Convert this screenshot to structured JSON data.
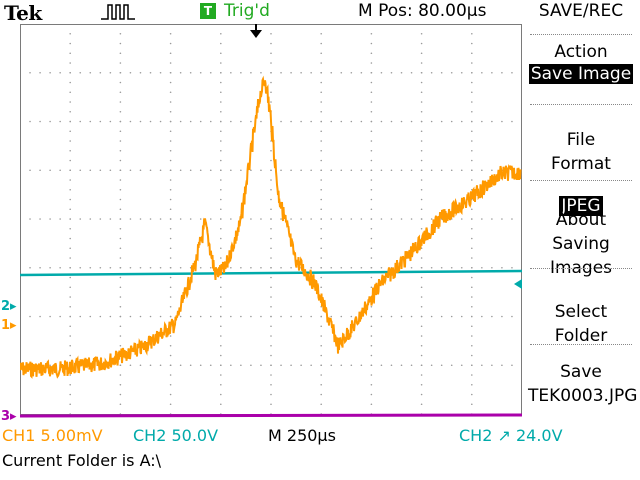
{
  "header": {
    "brand": "Tek",
    "acquire_icon": "pulse-icon",
    "trigger_badge": "T",
    "trigger_status": "Trig'd",
    "horizontal_position": "M Pos: 80.00µs"
  },
  "channel_markers": {
    "ch1": "1",
    "ch2": "2",
    "ch3": "3"
  },
  "menu": {
    "title": "SAVE/REC",
    "items": [
      {
        "label": "Action",
        "value": "Save Image"
      },
      {
        "label": "File\nFormat",
        "value": "JPEG"
      },
      {
        "label": "About\nSaving\nImages",
        "value": ""
      },
      {
        "label": "Select\nFolder",
        "value": ""
      },
      {
        "label": "Save",
        "value": "TEK0003.JPG"
      }
    ]
  },
  "status": {
    "ch1_scale": "CH1  5.00mV",
    "ch2_scale": "CH2  50.0V",
    "timebase": "M 250µs",
    "trigger": "CH2 ↗ 24.0V",
    "current_folder": "Current Folder is A:\\"
  },
  "colors": {
    "ch1": "#ff9900",
    "ch2": "#00aaaa",
    "ch3": "#aa00aa",
    "trigger": "#22aa22"
  }
}
